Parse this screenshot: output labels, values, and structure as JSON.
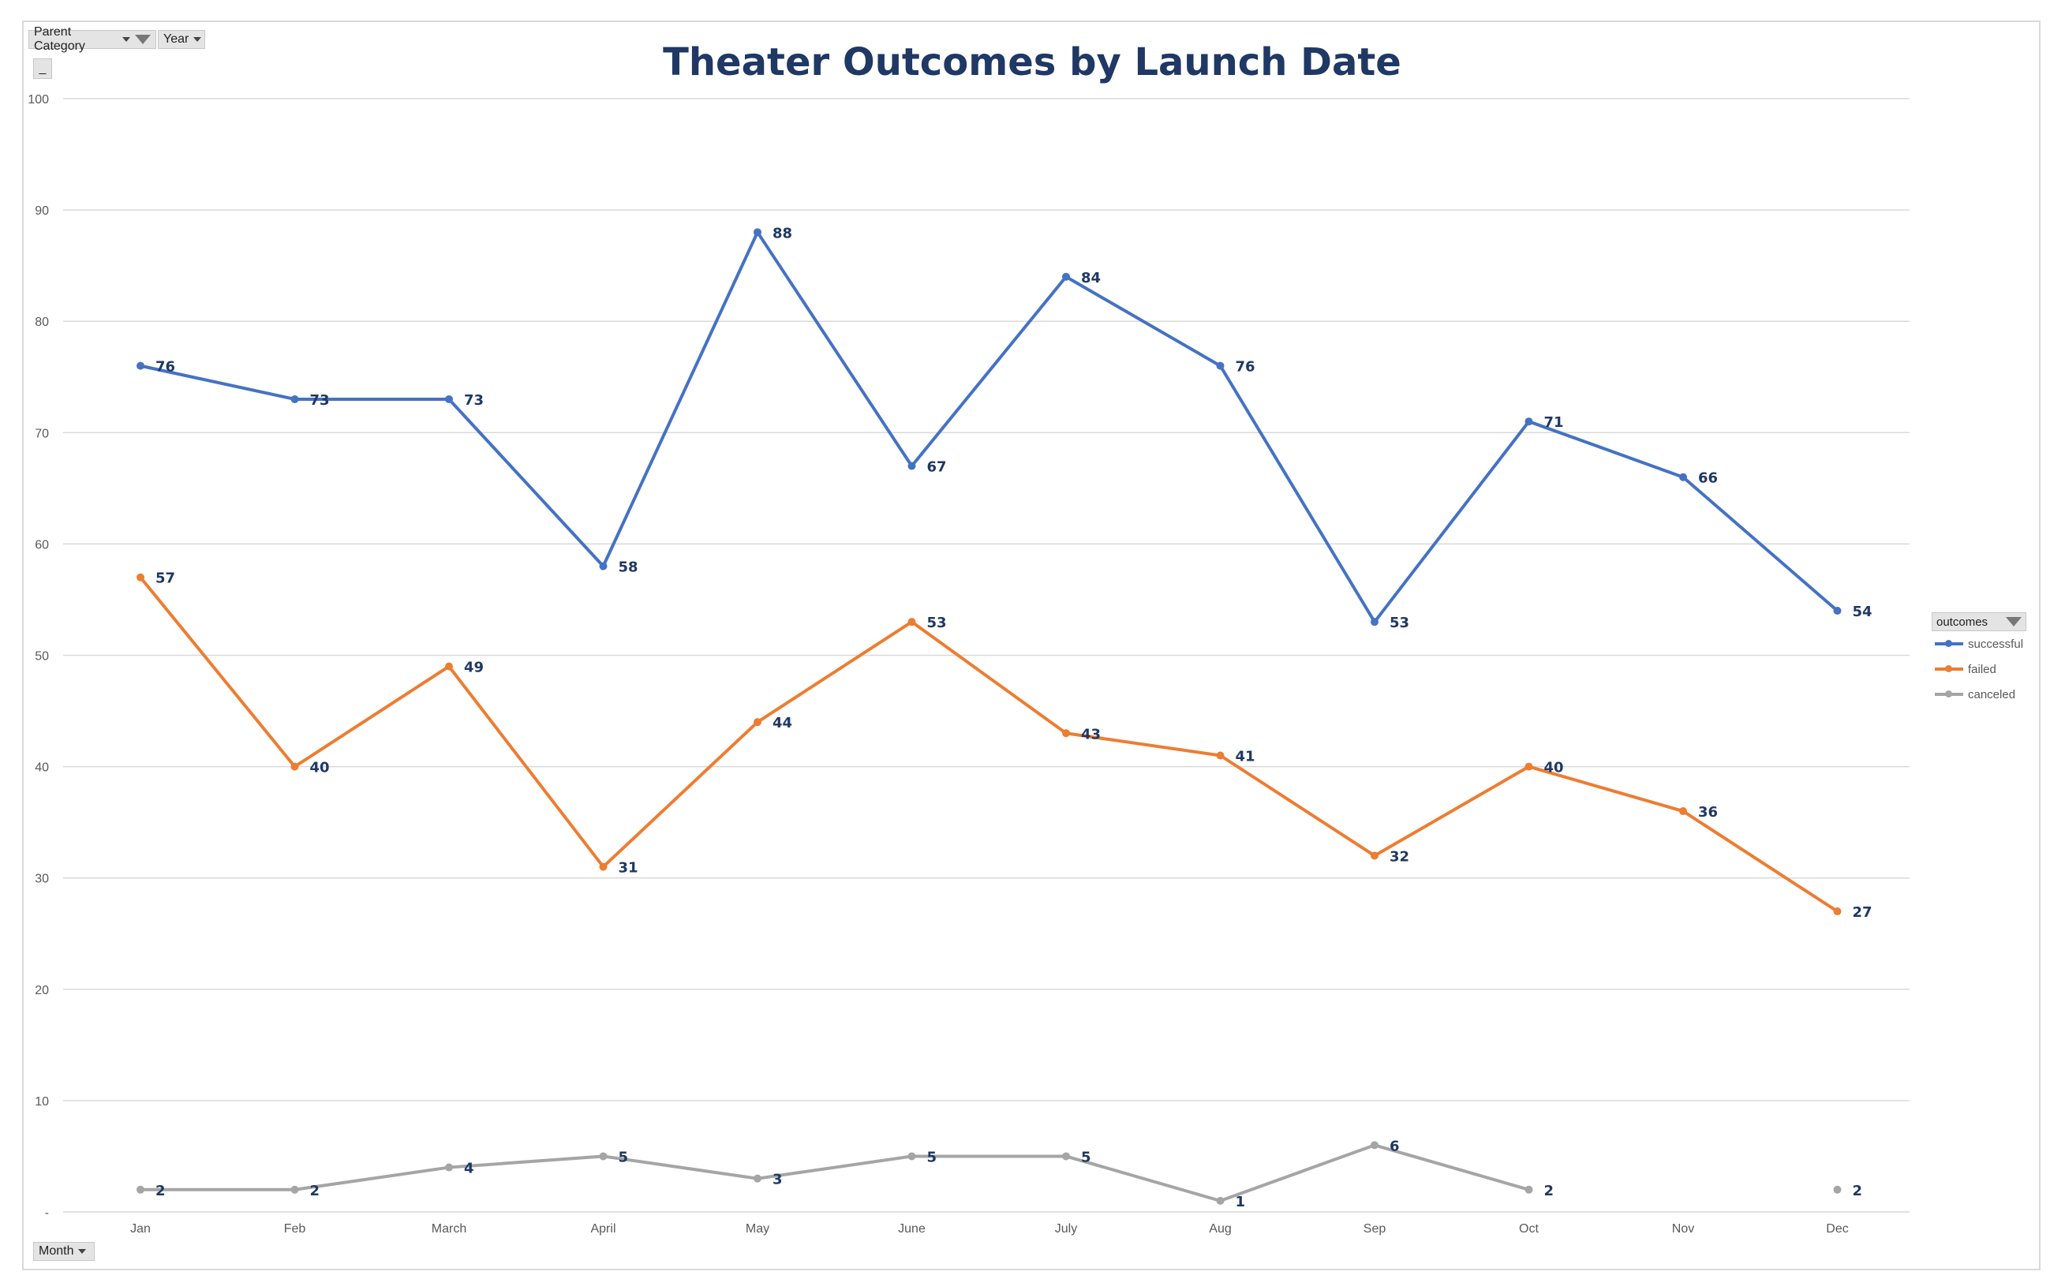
{
  "filters": {
    "parent_category": "Parent Category",
    "year": "Year",
    "collapse": "_",
    "month": "Month"
  },
  "legend": {
    "title": "outcomes"
  },
  "chart_data": {
    "type": "line",
    "title": "Theater Outcomes by Launch Date",
    "categories": [
      "Jan",
      "Feb",
      "March",
      "April",
      "May",
      "June",
      "July",
      "Aug",
      "Sep",
      "Oct",
      "Nov",
      "Dec"
    ],
    "ylim": [
      0,
      100
    ],
    "yticks": [
      "-",
      "10",
      "20",
      "30",
      "40",
      "50",
      "60",
      "70",
      "80",
      "90",
      "100"
    ],
    "grid": true,
    "legend_position": "right",
    "series": [
      {
        "name": "successful",
        "color": "#4472C4",
        "values": [
          76,
          73,
          73,
          58,
          88,
          67,
          84,
          76,
          53,
          71,
          66,
          54
        ]
      },
      {
        "name": "failed",
        "color": "#ED7D31",
        "values": [
          57,
          40,
          49,
          31,
          44,
          53,
          43,
          41,
          32,
          40,
          36,
          27
        ]
      },
      {
        "name": "canceled",
        "color": "#A5A5A5",
        "values": [
          2,
          2,
          4,
          5,
          3,
          5,
          5,
          1,
          6,
          2,
          null,
          2
        ]
      }
    ],
    "data_label_color": "#1F3864",
    "title_color": "#1F3864"
  }
}
